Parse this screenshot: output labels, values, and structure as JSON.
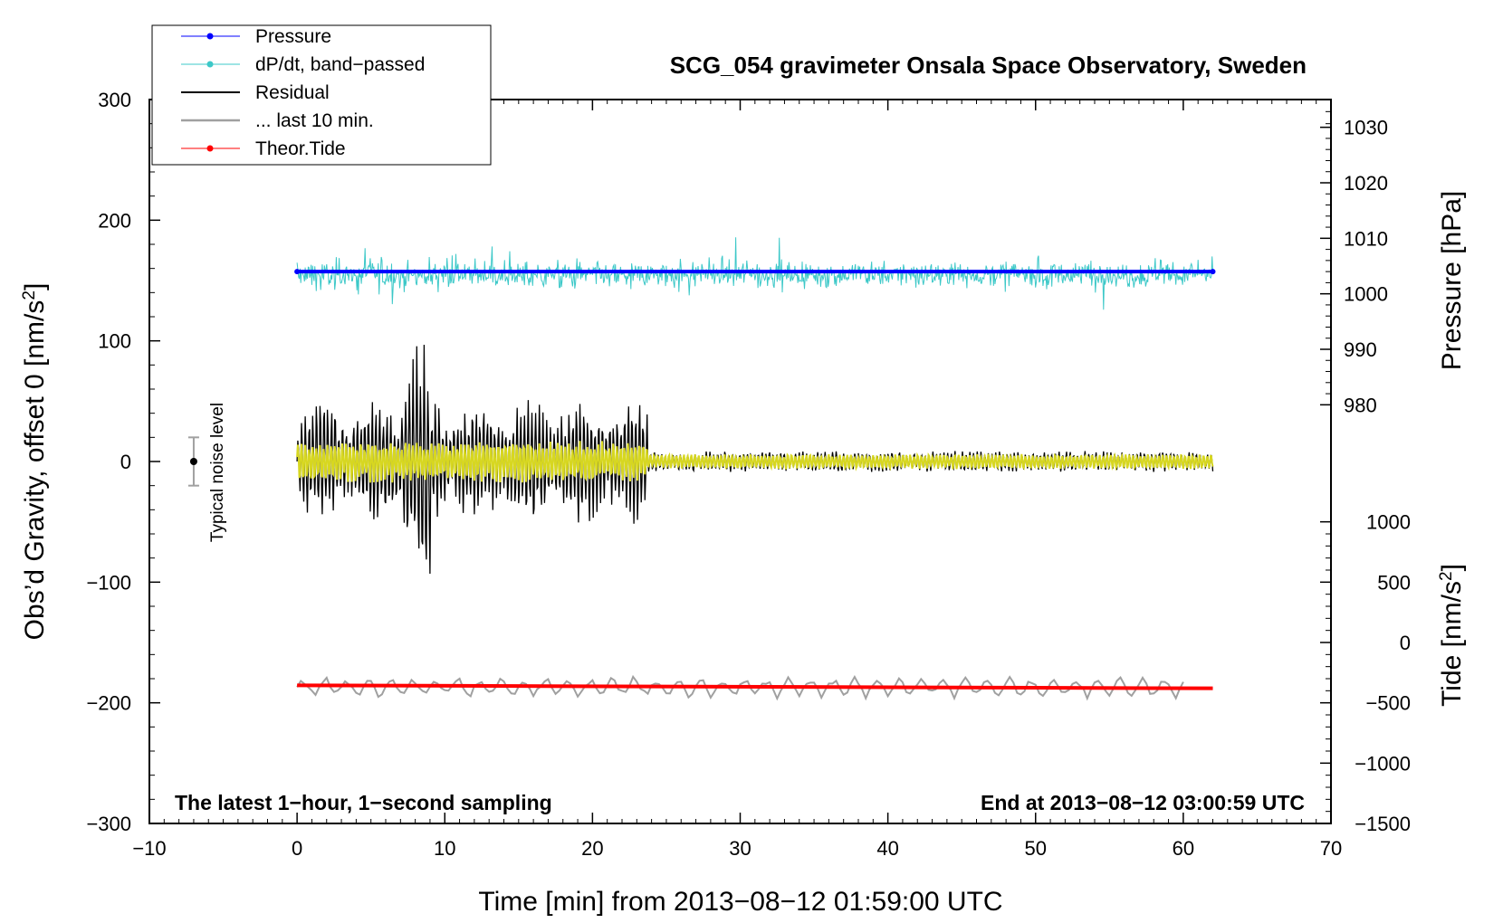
{
  "chart_data": {
    "type": "line",
    "title": "SCG_054 gravimeter Onsala Space Observatory, Sweden",
    "xlabel": "Time [min] from 2013−08−12 01:59:00 UTC",
    "ylabel_left": "Obs’d Gravity, offset 0 [nm/s",
    "ylabel_left_sup": "2",
    "ylabel_left_close": "]",
    "ylabel_right_pressure": "Pressure [hPa]",
    "ylabel_right_tide": "Tide [nm/s",
    "ylabel_right_tide_sup": "2",
    "ylabel_right_tide_close": "]",
    "xlim": [
      -10,
      70
    ],
    "ylim": [
      -300,
      300
    ],
    "x_ticks": [
      "−10",
      "0",
      "10",
      "20",
      "30",
      "40",
      "50",
      "60",
      "70"
    ],
    "y_ticks_left": [
      "300",
      "200",
      "100",
      "0",
      "−100",
      "−200",
      "−300"
    ],
    "pressure_ticks": [
      "1030",
      "1020",
      "1010",
      "1000",
      "990",
      "980"
    ],
    "tide_ticks": [
      "1000",
      "500",
      "0",
      "−500",
      "−1000",
      "−1500"
    ],
    "pressure_axis": {
      "value_ticks": [
        1030,
        1020,
        1010,
        1000,
        990,
        980
      ],
      "gravity_equiv": [
        277,
        231,
        185,
        139,
        93,
        47
      ]
    },
    "tide_axis": {
      "value_ticks": [
        1000,
        500,
        0,
        -500,
        -1000,
        -1500
      ],
      "gravity_equiv": [
        -50,
        -100,
        -150,
        -200,
        -250,
        -300
      ]
    },
    "note_left": "The latest 1−hour, 1−second sampling",
    "note_right": "End at 2013−08−12 03:00:59 UTC",
    "noise_label": "Typical noise level",
    "noise_level": {
      "x": -7,
      "center": 0,
      "half_range": 20
    },
    "legend_position": "top-left",
    "series": [
      {
        "name": "Pressure",
        "color": "#0000ff",
        "x_range": [
          0,
          62
        ],
        "level_hpa": 1004
      },
      {
        "name": "dP/dt, band−passed",
        "color": "#3cc8c8",
        "x_range": [
          0,
          62
        ],
        "center": 155,
        "amplitude": 20
      },
      {
        "name": "Residual",
        "color": "#000000",
        "x_range": [
          0,
          62
        ],
        "center": 0,
        "early_amplitude": 50,
        "late_amplitude": 8
      },
      {
        "name": "... last 10 min.",
        "color": "#a0a0a0",
        "x_range": [
          0,
          60
        ],
        "center": -187,
        "amplitude": 8
      },
      {
        "name": "Theor.Tide",
        "color": "#ff0000",
        "x_range": [
          0,
          62
        ],
        "values_nm_s2": [
          -355,
          -380
        ]
      }
    ],
    "overlay_color": "#d7d720"
  }
}
